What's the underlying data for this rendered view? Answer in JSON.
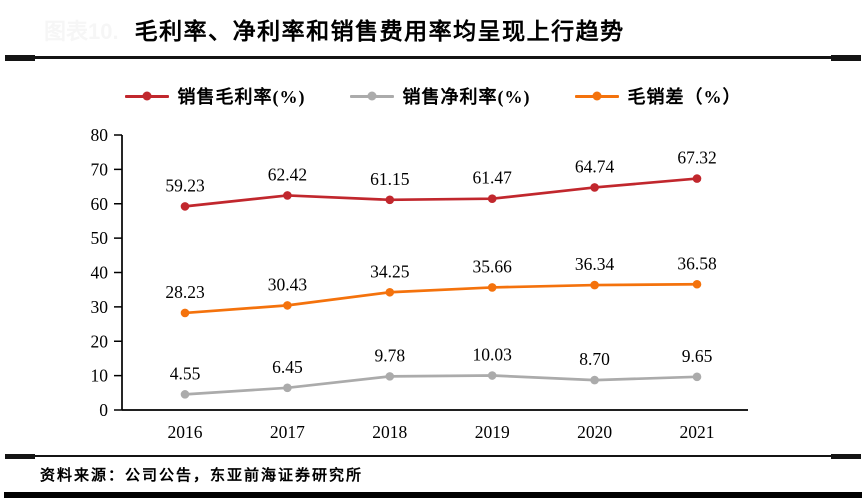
{
  "header": {
    "figure_label": "图表10.",
    "title": "毛利率、净利率和销售费用率均呈现上行趋势"
  },
  "footer": {
    "source": "资料来源：公司公告，东亚前海证券研究所"
  },
  "colors": {
    "gross_margin": "#C1272D",
    "net_margin": "#ABABAB",
    "gross_sales_gap": "#F4720C",
    "axis": "#000000",
    "rule": "#141414"
  },
  "chart_data": {
    "type": "line",
    "categories": [
      "2016",
      "2017",
      "2018",
      "2019",
      "2020",
      "2021"
    ],
    "series": [
      {
        "name": "销售毛利率(%)",
        "color": "#C1272D",
        "values": [
          59.23,
          62.42,
          61.15,
          61.47,
          64.74,
          67.32
        ],
        "labels": [
          "59.23",
          "62.42",
          "61.15",
          "61.47",
          "64.74",
          "67.32"
        ]
      },
      {
        "name": "销售净利率(%)",
        "color": "#ABABAB",
        "values": [
          4.55,
          6.45,
          9.78,
          10.03,
          8.7,
          9.65
        ],
        "labels": [
          "4.55",
          "6.45",
          "9.78",
          "10.03",
          "8.70",
          "9.65"
        ]
      },
      {
        "name": "毛销差（%）",
        "color": "#F4720C",
        "values": [
          28.23,
          30.43,
          34.25,
          35.66,
          36.34,
          36.58
        ],
        "labels": [
          "28.23",
          "30.43",
          "34.25",
          "35.66",
          "36.34",
          "36.58"
        ]
      }
    ],
    "title": "毛利率、净利率和销售费用率均呈现上行趋势",
    "xlabel": "",
    "ylabel": "",
    "ylim": [
      0,
      80
    ],
    "yticks": [
      0,
      10,
      20,
      30,
      40,
      50,
      60,
      70,
      80
    ],
    "grid": false,
    "legend_position": "top",
    "data_labels": true
  }
}
